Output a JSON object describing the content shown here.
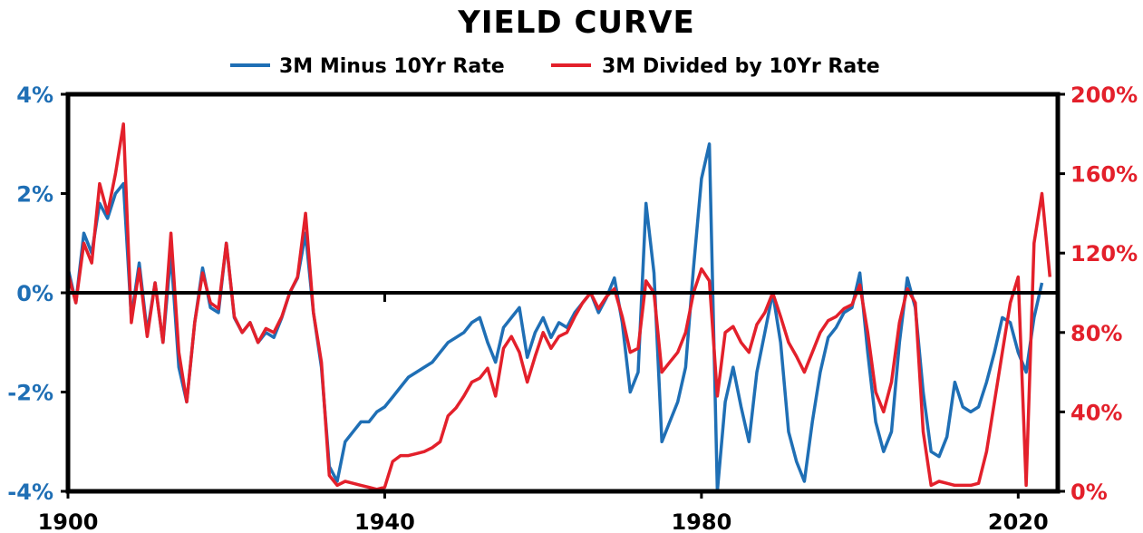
{
  "chart_data": {
    "type": "line",
    "title": "YIELD CURVE",
    "legend_placement": "top-center",
    "colors": {
      "left_axis": "#1f6fb5",
      "right_axis": "#e3202b",
      "zero_line": "#000000"
    },
    "x_axis": {
      "range": [
        1900,
        2025
      ],
      "ticks": [
        1900,
        1940,
        1980,
        2020
      ],
      "tick_labels": [
        "1900",
        "1940",
        "1980",
        "2020"
      ]
    },
    "y_left": {
      "range": [
        -4,
        4
      ],
      "ticks": [
        4,
        2,
        0,
        -2,
        -4
      ],
      "tick_labels": [
        "4%",
        "2%",
        "0%",
        "-2%",
        "-4%"
      ],
      "color": "#1f6fb5"
    },
    "y_right": {
      "range": [
        0,
        200
      ],
      "ticks": [
        200,
        160,
        120,
        80,
        40,
        0
      ],
      "tick_labels": [
        "200%",
        "160%",
        "120%",
        "80%",
        "40%",
        "0%"
      ],
      "color": "#e3202b"
    },
    "grid": false,
    "reference_line": {
      "axis": "left",
      "value": 0
    },
    "series": [
      {
        "name": "3M Minus 10Yr Rate",
        "axis": "left",
        "color": "#1f6fb5",
        "x": [
          1900,
          1901,
          1902,
          1903,
          1904,
          1905,
          1906,
          1907,
          1908,
          1909,
          1910,
          1911,
          1912,
          1913,
          1914,
          1915,
          1916,
          1917,
          1918,
          1919,
          1920,
          1921,
          1922,
          1923,
          1924,
          1925,
          1926,
          1927,
          1928,
          1929,
          1930,
          1931,
          1932,
          1933,
          1934,
          1935,
          1936,
          1937,
          1938,
          1939,
          1940,
          1941,
          1942,
          1943,
          1944,
          1945,
          1946,
          1947,
          1948,
          1949,
          1950,
          1951,
          1952,
          1953,
          1954,
          1955,
          1956,
          1957,
          1958,
          1959,
          1960,
          1961,
          1962,
          1963,
          1964,
          1965,
          1966,
          1967,
          1968,
          1969,
          1970,
          1971,
          1972,
          1973,
          1974,
          1975,
          1976,
          1977,
          1978,
          1979,
          1980,
          1981,
          1982,
          1983,
          1984,
          1985,
          1986,
          1987,
          1988,
          1989,
          1990,
          1991,
          1992,
          1993,
          1994,
          1995,
          1996,
          1997,
          1998,
          1999,
          2000,
          2001,
          2002,
          2003,
          2004,
          2005,
          2006,
          2007,
          2008,
          2009,
          2010,
          2011,
          2012,
          2013,
          2014,
          2015,
          2016,
          2017,
          2018,
          2019,
          2020,
          2021,
          2022,
          2023
        ],
        "values": [
          0.5,
          -0.2,
          1.2,
          0.8,
          1.8,
          1.5,
          2.0,
          2.2,
          -0.5,
          0.6,
          -0.8,
          0.2,
          -1.0,
          0.8,
          -1.5,
          -2.2,
          -0.6,
          0.5,
          -0.3,
          -0.4,
          1.0,
          -0.5,
          -0.8,
          -0.6,
          -1.0,
          -0.8,
          -0.9,
          -0.5,
          0.0,
          0.3,
          1.2,
          -0.4,
          -1.5,
          -3.5,
          -3.8,
          -3.0,
          -2.8,
          -2.6,
          -2.6,
          -2.4,
          -2.3,
          -2.1,
          -1.9,
          -1.7,
          -1.6,
          -1.5,
          -1.4,
          -1.2,
          -1.0,
          -0.9,
          -0.8,
          -0.6,
          -0.5,
          -1.0,
          -1.4,
          -0.7,
          -0.5,
          -0.3,
          -1.3,
          -0.8,
          -0.5,
          -0.9,
          -0.6,
          -0.7,
          -0.4,
          -0.2,
          0.0,
          -0.4,
          -0.1,
          0.3,
          -0.6,
          -2.0,
          -1.6,
          1.8,
          0.4,
          -3.0,
          -2.6,
          -2.2,
          -1.5,
          0.5,
          2.3,
          3.0,
          -4.0,
          -2.2,
          -1.5,
          -2.3,
          -3.0,
          -1.6,
          -0.8,
          0.0,
          -1.0,
          -2.8,
          -3.4,
          -3.8,
          -2.6,
          -1.6,
          -0.9,
          -0.7,
          -0.4,
          -0.3,
          0.4,
          -1.2,
          -2.6,
          -3.2,
          -2.8,
          -1.0,
          0.3,
          -0.3,
          -2.0,
          -3.2,
          -3.3,
          -2.9,
          -1.8,
          -2.3,
          -2.4,
          -2.3,
          -1.8,
          -1.2,
          -0.5,
          -0.6,
          -1.2,
          -1.6,
          -0.5,
          0.2
        ]
      },
      {
        "name": "3M Divided by 10Yr Rate",
        "axis": "right",
        "color": "#e3202b",
        "x": [
          1900,
          1901,
          1902,
          1903,
          1904,
          1905,
          1906,
          1907,
          1908,
          1909,
          1910,
          1911,
          1912,
          1913,
          1914,
          1915,
          1916,
          1917,
          1918,
          1919,
          1920,
          1921,
          1922,
          1923,
          1924,
          1925,
          1926,
          1927,
          1928,
          1929,
          1930,
          1931,
          1932,
          1933,
          1934,
          1935,
          1936,
          1937,
          1938,
          1939,
          1940,
          1941,
          1942,
          1943,
          1944,
          1945,
          1946,
          1947,
          1948,
          1949,
          1950,
          1951,
          1952,
          1953,
          1954,
          1955,
          1956,
          1957,
          1958,
          1959,
          1960,
          1961,
          1962,
          1963,
          1964,
          1965,
          1966,
          1967,
          1968,
          1969,
          1970,
          1971,
          1972,
          1973,
          1974,
          1975,
          1976,
          1977,
          1978,
          1979,
          1980,
          1981,
          1982,
          1983,
          1984,
          1985,
          1986,
          1987,
          1988,
          1989,
          1990,
          1991,
          1992,
          1993,
          1994,
          1995,
          1996,
          1997,
          1998,
          1999,
          2000,
          2001,
          2002,
          2003,
          2004,
          2005,
          2006,
          2007,
          2008,
          2009,
          2010,
          2011,
          2012,
          2013,
          2014,
          2015,
          2016,
          2017,
          2018,
          2019,
          2020,
          2021,
          2022,
          2023,
          2024
        ],
        "values": [
          110,
          95,
          125,
          115,
          155,
          140,
          160,
          185,
          85,
          112,
          78,
          105,
          75,
          130,
          70,
          45,
          85,
          110,
          95,
          92,
          125,
          88,
          80,
          85,
          75,
          82,
          80,
          88,
          100,
          108,
          140,
          90,
          65,
          8,
          3,
          5,
          4,
          3,
          2,
          1,
          2,
          15,
          18,
          18,
          19,
          20,
          22,
          25,
          38,
          42,
          48,
          55,
          57,
          62,
          48,
          72,
          78,
          70,
          55,
          68,
          80,
          72,
          78,
          80,
          88,
          95,
          100,
          92,
          98,
          102,
          88,
          70,
          72,
          106,
          100,
          60,
          65,
          70,
          80,
          100,
          112,
          106,
          48,
          80,
          83,
          75,
          70,
          84,
          90,
          100,
          88,
          75,
          68,
          60,
          70,
          80,
          86,
          88,
          92,
          94,
          104,
          80,
          50,
          40,
          55,
          85,
          102,
          95,
          30,
          3,
          5,
          4,
          3,
          3,
          3,
          4,
          20,
          45,
          70,
          95,
          108,
          3,
          125,
          150,
          108
        ]
      }
    ]
  }
}
